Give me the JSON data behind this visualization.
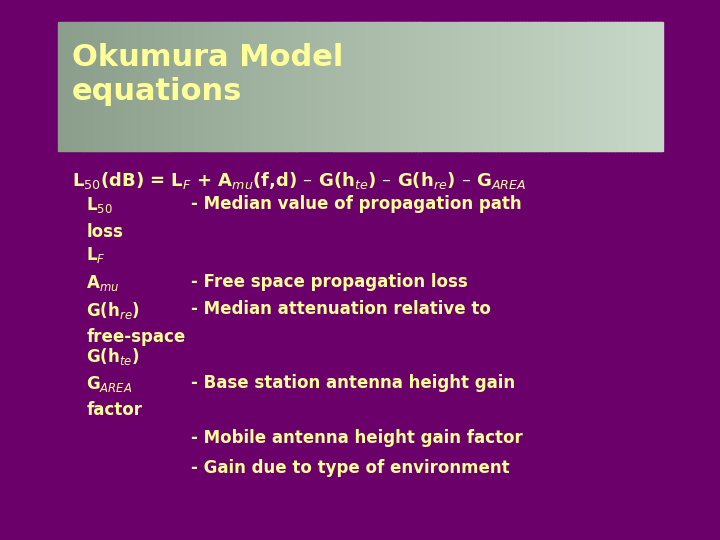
{
  "background_color": "#6B006B",
  "title_box_color_left": "#8B9E8B",
  "title_box_color_right": "#C8D8C8",
  "title_text": "Okumura Model\nequations",
  "title_color": "#FFFF99",
  "equation": "L$_{50}$(dB) = L$_{F}$ + A$_{mu}$(f,d) – G(h$_{te}$) – G(h$_{re}$) – G$_{AREA}$",
  "eq_color": "#FFFF99",
  "items": [
    {
      "symbol": "L$_{50}$",
      "description": "- Median value of propagation path\nloss"
    },
    {
      "symbol": "L$_{F}$",
      "description": ""
    },
    {
      "symbol": "A$_{mu}$",
      "description": "- Free space propagation loss"
    },
    {
      "symbol": "G(h$_{re}$)",
      "description": "- Median attenuation relative to\nfree-space"
    },
    {
      "symbol": "G(h$_{te}$)",
      "description": ""
    },
    {
      "symbol": "G$_{AREA}$",
      "description": "- Base station antenna height gain\nfactor"
    },
    {
      "symbol": "",
      "description": "- Mobile antenna height gain factor"
    },
    {
      "symbol": "",
      "description": "- Gain due to type of environment"
    }
  ],
  "item_symbol_color": "#FFFF99",
  "item_desc_color": "#FFFF99",
  "figsize": [
    7.2,
    5.4
  ],
  "dpi": 100
}
